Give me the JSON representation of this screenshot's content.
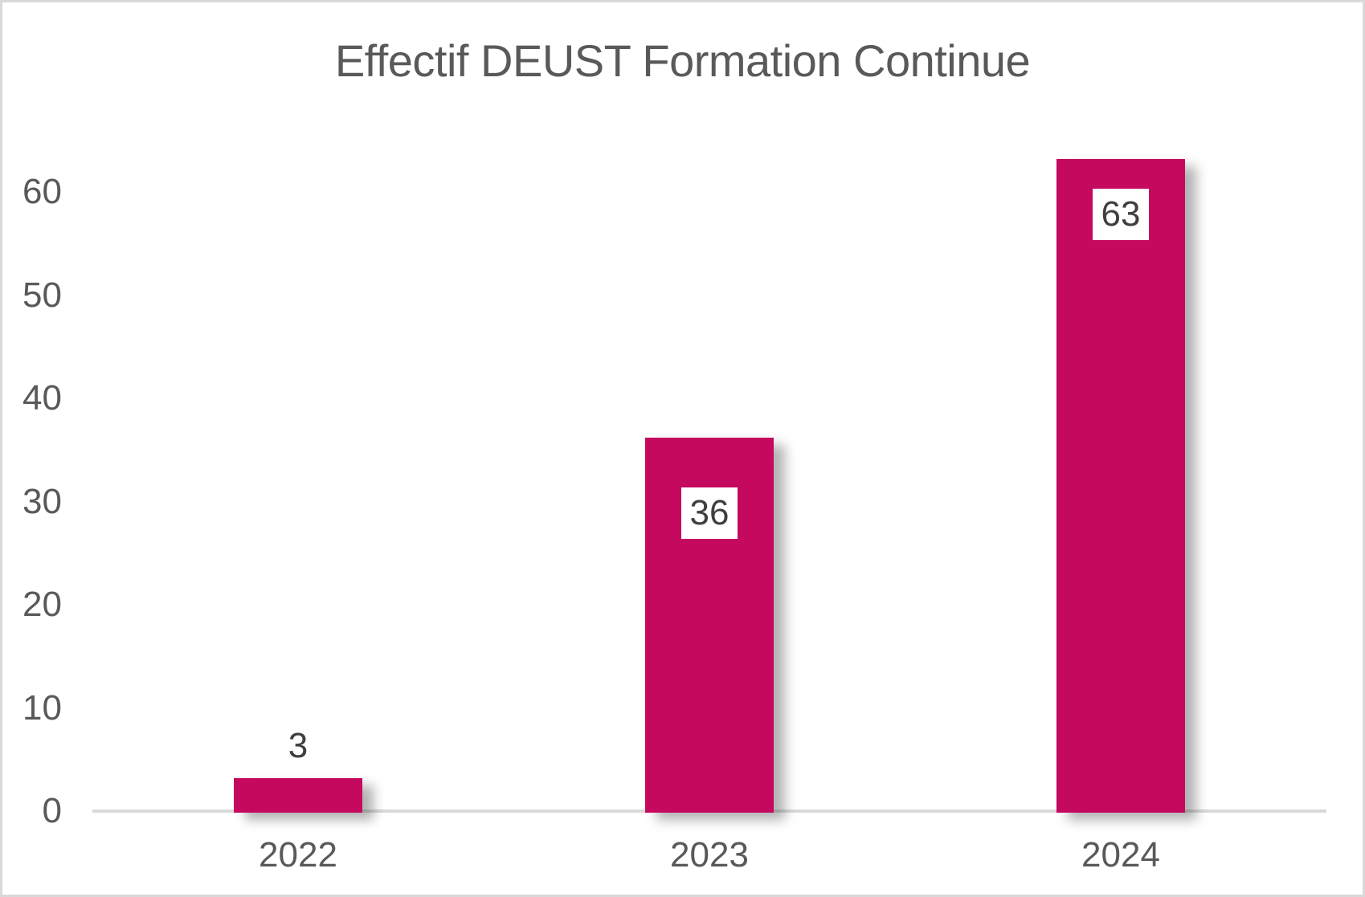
{
  "chart_data": {
    "type": "bar",
    "title": "Effectif DEUST Formation Continue",
    "categories": [
      "2022",
      "2023",
      "2024"
    ],
    "series": [
      {
        "name": "Effectif DEUST Formation Continue",
        "values": [
          3,
          36,
          63
        ]
      }
    ],
    "data_labels": [
      "3",
      "36",
      "63"
    ],
    "xlabel": "",
    "ylabel": "",
    "yticks": [
      "0",
      "10",
      "20",
      "30",
      "40",
      "50",
      "60"
    ],
    "ytick_values": [
      0,
      10,
      20,
      30,
      40,
      50,
      60
    ],
    "ylim": [
      0,
      65.5
    ],
    "grid": false,
    "legend": false,
    "colors": {
      "bar": "#C5095F",
      "title_text": "#595959",
      "axis_text": "#595959",
      "data_label_text": "#3F3F3F",
      "data_label_bg": "#FFFFFF",
      "axis_line": "#D9D9D9",
      "frame_border": "#D9D9D9",
      "background": "#FFFFFF"
    }
  }
}
